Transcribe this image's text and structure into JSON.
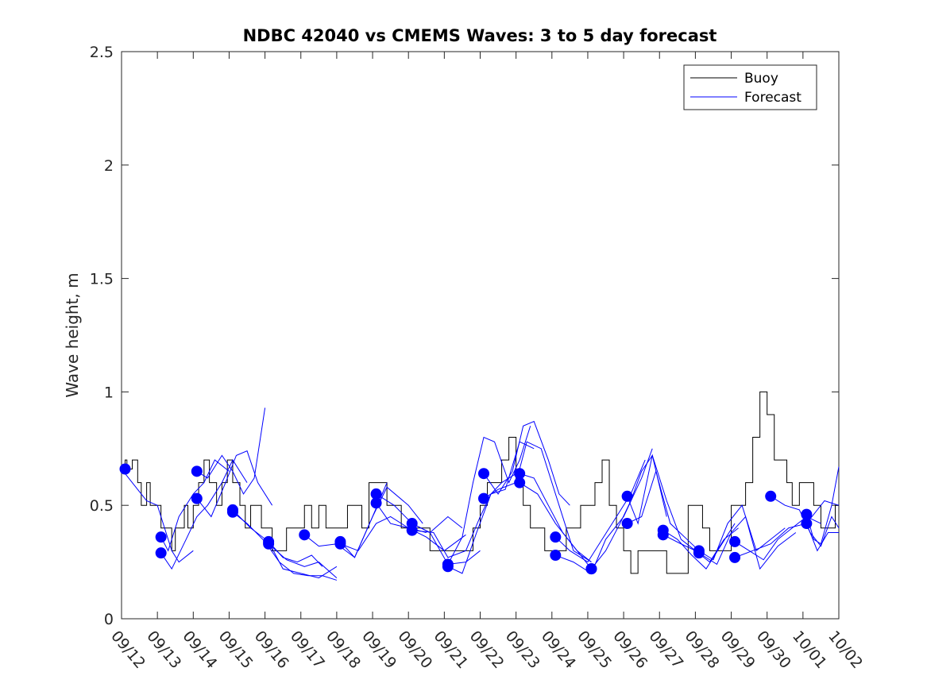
{
  "chart_data": {
    "type": "line",
    "title": "NDBC 42040 vs CMEMS Waves: 3 to 5 day forecast",
    "xlabel": "",
    "ylabel": "Wave height, m",
    "xlim": [
      0,
      20
    ],
    "ylim": [
      0,
      2.5
    ],
    "yticks": [
      0,
      0.5,
      1,
      1.5,
      2,
      2.5
    ],
    "ytick_labels": [
      "0",
      "0.5",
      "1",
      "1.5",
      "2",
      "2.5"
    ],
    "xtick_labels": [
      "09/12",
      "09/13",
      "09/14",
      "09/15",
      "09/16",
      "09/17",
      "09/18",
      "09/19",
      "09/20",
      "09/21",
      "09/22",
      "09/23",
      "09/24",
      "09/25",
      "09/26",
      "09/27",
      "09/28",
      "09/29",
      "09/30",
      "10/01",
      "10/02"
    ],
    "legend": {
      "placement": "top-right",
      "entries": [
        {
          "label": "Buoy",
          "color": "#000000"
        },
        {
          "label": "Forecast",
          "color": "#0000ff"
        }
      ]
    },
    "series": [
      {
        "name": "Buoy",
        "color": "#000000",
        "step": true,
        "x": [
          0,
          0.1,
          0.15,
          0.3,
          0.45,
          0.55,
          0.7,
          0.8,
          1.0,
          1.1,
          1.2,
          1.4,
          1.5,
          1.6,
          1.75,
          1.85,
          2.0,
          2.15,
          2.3,
          2.45,
          2.55,
          2.65,
          2.8,
          2.95,
          3.1,
          3.3,
          3.45,
          3.6,
          3.75,
          3.9,
          4.05,
          4.2,
          4.35,
          4.5,
          4.6,
          4.75,
          4.9,
          5.1,
          5.3,
          5.5,
          5.7,
          5.9,
          6.1,
          6.3,
          6.5,
          6.7,
          6.9,
          7.05,
          7.2,
          7.4,
          7.6,
          7.8,
          8.0,
          8.2,
          8.4,
          8.6,
          8.8,
          9.0,
          9.2,
          9.5,
          9.8,
          10.0,
          10.2,
          10.4,
          10.6,
          10.8,
          11.0,
          11.2,
          11.4,
          11.6,
          11.8,
          12.0,
          12.2,
          12.4,
          12.6,
          12.8,
          13.0,
          13.2,
          13.4,
          13.6,
          13.8,
          14.0,
          14.2,
          14.4,
          14.6,
          14.8,
          15.0,
          15.2,
          15.4,
          15.6,
          15.8,
          16.0,
          16.2,
          16.4,
          16.6,
          16.8,
          17.0,
          17.2,
          17.4,
          17.6,
          17.8,
          18.0,
          18.2,
          18.35,
          18.45,
          18.55,
          18.7,
          18.9,
          19.1,
          19.3,
          19.5,
          19.7,
          19.9,
          20.0
        ],
        "y": [
          0.66,
          0.7,
          0.66,
          0.7,
          0.6,
          0.5,
          0.6,
          0.5,
          0.5,
          0.4,
          0.4,
          0.3,
          0.4,
          0.4,
          0.5,
          0.4,
          0.5,
          0.6,
          0.7,
          0.6,
          0.6,
          0.5,
          0.6,
          0.7,
          0.6,
          0.5,
          0.4,
          0.5,
          0.5,
          0.4,
          0.4,
          0.3,
          0.3,
          0.3,
          0.4,
          0.4,
          0.4,
          0.5,
          0.4,
          0.5,
          0.4,
          0.4,
          0.4,
          0.5,
          0.5,
          0.4,
          0.6,
          0.6,
          0.6,
          0.5,
          0.5,
          0.4,
          0.4,
          0.4,
          0.4,
          0.3,
          0.3,
          0.3,
          0.3,
          0.3,
          0.4,
          0.5,
          0.6,
          0.6,
          0.7,
          0.8,
          0.6,
          0.5,
          0.4,
          0.4,
          0.3,
          0.3,
          0.3,
          0.4,
          0.4,
          0.5,
          0.5,
          0.6,
          0.7,
          0.5,
          0.4,
          0.3,
          0.2,
          0.3,
          0.3,
          0.3,
          0.3,
          0.2,
          0.2,
          0.2,
          0.5,
          0.5,
          0.4,
          0.3,
          0.3,
          0.3,
          0.5,
          0.5,
          0.6,
          0.8,
          1.0,
          0.9,
          0.7,
          0.7,
          0.7,
          0.6,
          0.5,
          0.6,
          0.6,
          0.5,
          0.4,
          0.4,
          0.5,
          0.5
        ]
      },
      {
        "name": "Forecast",
        "color": "#0000ff",
        "segments": [
          {
            "x": [
              0,
              0.3,
              0.7,
              1.0,
              1.2,
              1.4,
              1.6,
              2.0
            ],
            "y": [
              0.66,
              0.6,
              0.52,
              0.5,
              0.4,
              0.3,
              0.25,
              0.3
            ]
          },
          {
            "x": [
              1.1,
              1.3,
              1.6,
              2.0,
              2.3,
              2.6,
              3.0
            ],
            "y": [
              0.36,
              0.3,
              0.45,
              0.55,
              0.6,
              0.7,
              0.65
            ]
          },
          {
            "x": [
              1.1,
              1.4,
              1.8,
              2.1,
              2.4,
              2.8,
              3.1,
              3.5
            ],
            "y": [
              0.29,
              0.22,
              0.35,
              0.45,
              0.5,
              0.6,
              0.7,
              0.6
            ]
          },
          {
            "x": [
              2.1,
              2.4,
              2.8,
              3.1,
              3.4,
              3.7,
              4.0
            ],
            "y": [
              0.65,
              0.62,
              0.72,
              0.65,
              0.55,
              0.62,
              0.93
            ]
          },
          {
            "x": [
              2.1,
              2.5,
              2.9,
              3.2,
              3.5,
              3.8,
              4.2
            ],
            "y": [
              0.53,
              0.45,
              0.6,
              0.72,
              0.74,
              0.6,
              0.5
            ]
          },
          {
            "x": [
              3.1,
              3.5,
              4.0,
              4.4,
              4.8,
              5.2,
              5.6,
              6.0
            ],
            "y": [
              0.47,
              0.42,
              0.34,
              0.25,
              0.2,
              0.19,
              0.19,
              0.17
            ]
          },
          {
            "x": [
              3.1,
              3.6,
              4.1,
              4.5,
              5.0,
              5.5,
              6.0
            ],
            "y": [
              0.48,
              0.4,
              0.34,
              0.22,
              0.2,
              0.18,
              0.23
            ]
          },
          {
            "x": [
              4.1,
              4.5,
              4.9,
              5.3,
              5.6
            ],
            "y": [
              0.34,
              0.27,
              0.25,
              0.28,
              0.23
            ]
          },
          {
            "x": [
              4.1,
              4.6,
              5.1,
              5.5,
              6.0
            ],
            "y": [
              0.33,
              0.26,
              0.23,
              0.25,
              0.18
            ]
          },
          {
            "x": [
              5.1,
              5.5,
              6.0,
              6.5,
              7.0,
              7.4
            ],
            "y": [
              0.37,
              0.32,
              0.33,
              0.27,
              0.45,
              0.6
            ]
          },
          {
            "x": [
              6.1,
              6.5,
              7.0,
              7.4,
              8.0,
              8.4
            ],
            "y": [
              0.34,
              0.27,
              0.45,
              0.58,
              0.5,
              0.42
            ]
          },
          {
            "x": [
              6.1,
              6.6,
              7.1,
              7.5,
              8.0,
              8.5
            ],
            "y": [
              0.33,
              0.3,
              0.42,
              0.45,
              0.4,
              0.38
            ]
          },
          {
            "x": [
              7.1,
              7.6,
              8.1,
              8.6,
              9.1,
              9.5
            ],
            "y": [
              0.55,
              0.5,
              0.42,
              0.38,
              0.45,
              0.4
            ]
          },
          {
            "x": [
              7.1,
              7.5,
              8.0,
              8.5,
              9.0,
              9.6
            ],
            "y": [
              0.51,
              0.42,
              0.4,
              0.36,
              0.3,
              0.37
            ]
          },
          {
            "x": [
              8.1,
              8.6,
              9.1,
              9.6,
              10.0
            ],
            "y": [
              0.42,
              0.38,
              0.24,
              0.25,
              0.3
            ]
          },
          {
            "x": [
              8.1,
              8.7,
              9.1,
              9.6,
              10.0,
              10.3,
              10.6,
              11.0
            ],
            "y": [
              0.39,
              0.38,
              0.27,
              0.3,
              0.45,
              0.55,
              0.6,
              0.64
            ]
          },
          {
            "x": [
              9.1,
              9.5,
              9.8,
              10.1,
              10.4,
              10.8,
              11.1,
              11.4
            ],
            "y": [
              0.24,
              0.36,
              0.6,
              0.8,
              0.78,
              0.6,
              0.7,
              0.85
            ]
          },
          {
            "x": [
              9.1,
              9.5,
              9.9,
              10.3,
              10.7,
              11.1,
              11.5
            ],
            "y": [
              0.23,
              0.2,
              0.38,
              0.55,
              0.57,
              0.78,
              0.75
            ]
          },
          {
            "x": [
              10.1,
              10.5,
              10.9,
              11.2,
              11.5,
              11.9,
              12.2,
              12.5
            ],
            "y": [
              0.64,
              0.55,
              0.65,
              0.85,
              0.87,
              0.7,
              0.55,
              0.5
            ]
          },
          {
            "x": [
              10.1,
              10.5,
              11.0,
              11.3,
              11.7,
              12.2,
              12.6,
              13.1
            ],
            "y": [
              0.53,
              0.57,
              0.6,
              0.78,
              0.75,
              0.5,
              0.3,
              0.25
            ]
          },
          {
            "x": [
              11.1,
              11.5,
              11.9,
              12.3,
              12.7,
              13.1
            ],
            "y": [
              0.64,
              0.62,
              0.5,
              0.38,
              0.3,
              0.25
            ]
          },
          {
            "x": [
              11.1,
              11.6,
              12.1,
              12.6,
              13.1
            ],
            "y": [
              0.6,
              0.55,
              0.42,
              0.32,
              0.22
            ]
          },
          {
            "x": [
              12.1,
              12.5,
              13.0,
              13.4,
              13.8,
              14.2,
              14.6
            ],
            "y": [
              0.36,
              0.3,
              0.25,
              0.35,
              0.45,
              0.55,
              0.7
            ]
          },
          {
            "x": [
              12.1,
              12.6,
              13.1,
              13.5,
              14.0,
              14.5,
              14.8
            ],
            "y": [
              0.28,
              0.25,
              0.2,
              0.35,
              0.45,
              0.62,
              0.75
            ]
          },
          {
            "x": [
              13.1,
              13.5,
              13.9,
              14.2,
              14.5,
              14.8,
              15.2
            ],
            "y": [
              0.22,
              0.3,
              0.42,
              0.52,
              0.65,
              0.72,
              0.45
            ]
          },
          {
            "x": [
              14.1,
              14.4,
              14.8,
              15.2,
              15.6,
              16.0
            ],
            "y": [
              0.54,
              0.42,
              0.72,
              0.52,
              0.35,
              0.3
            ]
          },
          {
            "x": [
              14.1,
              14.5,
              14.9,
              15.3,
              15.7,
              16.1
            ],
            "y": [
              0.42,
              0.45,
              0.65,
              0.42,
              0.36,
              0.3
            ]
          },
          {
            "x": [
              15.1,
              15.5,
              15.9,
              16.3,
              16.7,
              17.1
            ],
            "y": [
              0.39,
              0.35,
              0.28,
              0.22,
              0.32,
              0.42
            ]
          },
          {
            "x": [
              15.1,
              15.6,
              16.0,
              16.4,
              16.8,
              17.2
            ],
            "y": [
              0.37,
              0.33,
              0.3,
              0.25,
              0.35,
              0.4
            ]
          },
          {
            "x": [
              16.1,
              16.5,
              16.9,
              17.3,
              17.7,
              18.1,
              18.5
            ],
            "y": [
              0.3,
              0.26,
              0.42,
              0.5,
              0.3,
              0.35,
              0.4
            ]
          },
          {
            "x": [
              16.1,
              16.6,
              17.0,
              17.4,
              17.8,
              18.3,
              18.8
            ],
            "y": [
              0.29,
              0.24,
              0.38,
              0.45,
              0.22,
              0.32,
              0.38
            ]
          },
          {
            "x": [
              17.1,
              17.5,
              17.9,
              18.3,
              18.7,
              19.1,
              19.5
            ],
            "y": [
              0.34,
              0.3,
              0.26,
              0.35,
              0.4,
              0.45,
              0.42
            ]
          },
          {
            "x": [
              17.1,
              17.6,
              18.1,
              18.6,
              19.1,
              19.6,
              20.0
            ],
            "y": [
              0.27,
              0.3,
              0.33,
              0.4,
              0.42,
              0.52,
              0.5
            ]
          },
          {
            "x": [
              18.1,
              18.5,
              18.9,
              19.2,
              19.5,
              19.8,
              20.0
            ],
            "y": [
              0.54,
              0.5,
              0.48,
              0.38,
              0.32,
              0.45,
              0.4
            ]
          },
          {
            "x": [
              19.1,
              19.3,
              19.5,
              19.8,
              20.0
            ],
            "y": [
              0.46,
              0.35,
              0.33,
              0.5,
              0.67
            ]
          },
          {
            "x": [
              19.1,
              19.4,
              19.7,
              20.0
            ],
            "y": [
              0.42,
              0.3,
              0.38,
              0.38
            ]
          }
        ],
        "markers": {
          "x": [
            0.1,
            1.1,
            1.1,
            2.1,
            2.1,
            3.1,
            3.1,
            4.1,
            4.1,
            5.1,
            6.1,
            6.1,
            7.1,
            7.1,
            8.1,
            8.1,
            9.1,
            9.1,
            10.1,
            10.1,
            11.1,
            11.1,
            12.1,
            12.1,
            13.1,
            13.1,
            14.1,
            14.1,
            15.1,
            15.1,
            16.1,
            16.1,
            17.1,
            17.1,
            18.1,
            19.1,
            19.1
          ],
          "y": [
            0.66,
            0.36,
            0.29,
            0.65,
            0.53,
            0.48,
            0.47,
            0.34,
            0.33,
            0.37,
            0.34,
            0.33,
            0.55,
            0.51,
            0.42,
            0.39,
            0.24,
            0.23,
            0.64,
            0.53,
            0.64,
            0.6,
            0.36,
            0.28,
            0.22,
            0.22,
            0.54,
            0.42,
            0.39,
            0.37,
            0.3,
            0.29,
            0.34,
            0.27,
            0.54,
            0.46,
            0.42
          ]
        }
      }
    ]
  }
}
